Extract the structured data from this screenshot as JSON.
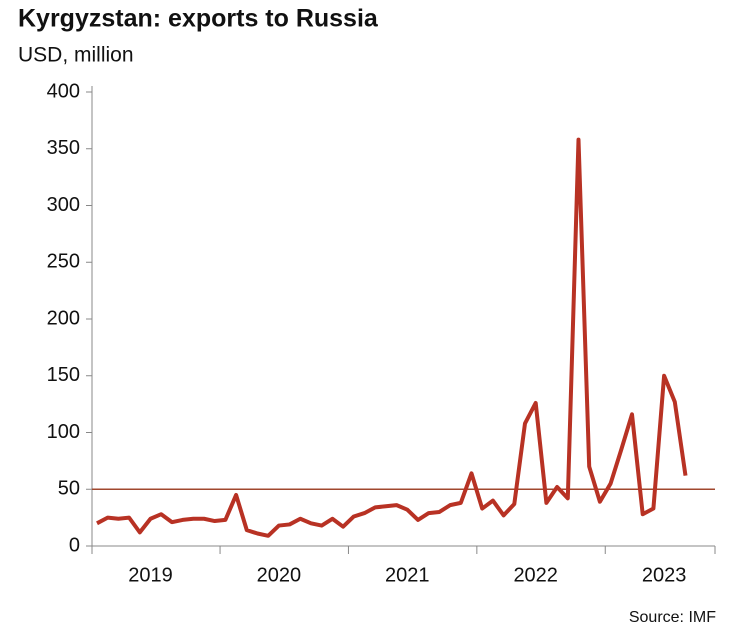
{
  "chart_data": {
    "type": "line",
    "title": "Kyrgyzstan: exports to Russia",
    "subtitle": "USD, million",
    "source": "Source: IMF",
    "categories": [
      null,
      null,
      null,
      null,
      null,
      "2019",
      null,
      null,
      null,
      null,
      null,
      null,
      null,
      null,
      null,
      null,
      null,
      "2020",
      null,
      null,
      null,
      null,
      null,
      null,
      null,
      null,
      null,
      null,
      null,
      "2021",
      null,
      null,
      null,
      null,
      null,
      null,
      null,
      null,
      null,
      null,
      null,
      "2022",
      null,
      null,
      null,
      null,
      null,
      null,
      null,
      null,
      null,
      null,
      null,
      "2023",
      null,
      null
    ],
    "series": [
      {
        "name": "Exports to Russia",
        "color": "#b83224",
        "values": [
          20,
          25,
          24,
          25,
          12,
          24,
          28,
          21,
          23,
          24,
          24,
          22,
          23,
          45,
          14,
          11,
          9,
          18,
          19,
          24,
          20,
          18,
          24,
          17,
          26,
          29,
          34,
          35,
          36,
          32,
          23,
          29,
          30,
          36,
          38,
          64,
          33,
          40,
          27,
          37,
          108,
          126,
          38,
          52,
          42,
          358,
          70,
          39,
          55,
          85,
          116,
          28,
          33,
          150,
          127,
          62
        ]
      }
    ],
    "ylim": [
      0,
      400
    ],
    "yticks": [
      0,
      50,
      100,
      150,
      200,
      250,
      300,
      350,
      400
    ],
    "reference_line": 50,
    "reference_color": "#a0472e"
  }
}
